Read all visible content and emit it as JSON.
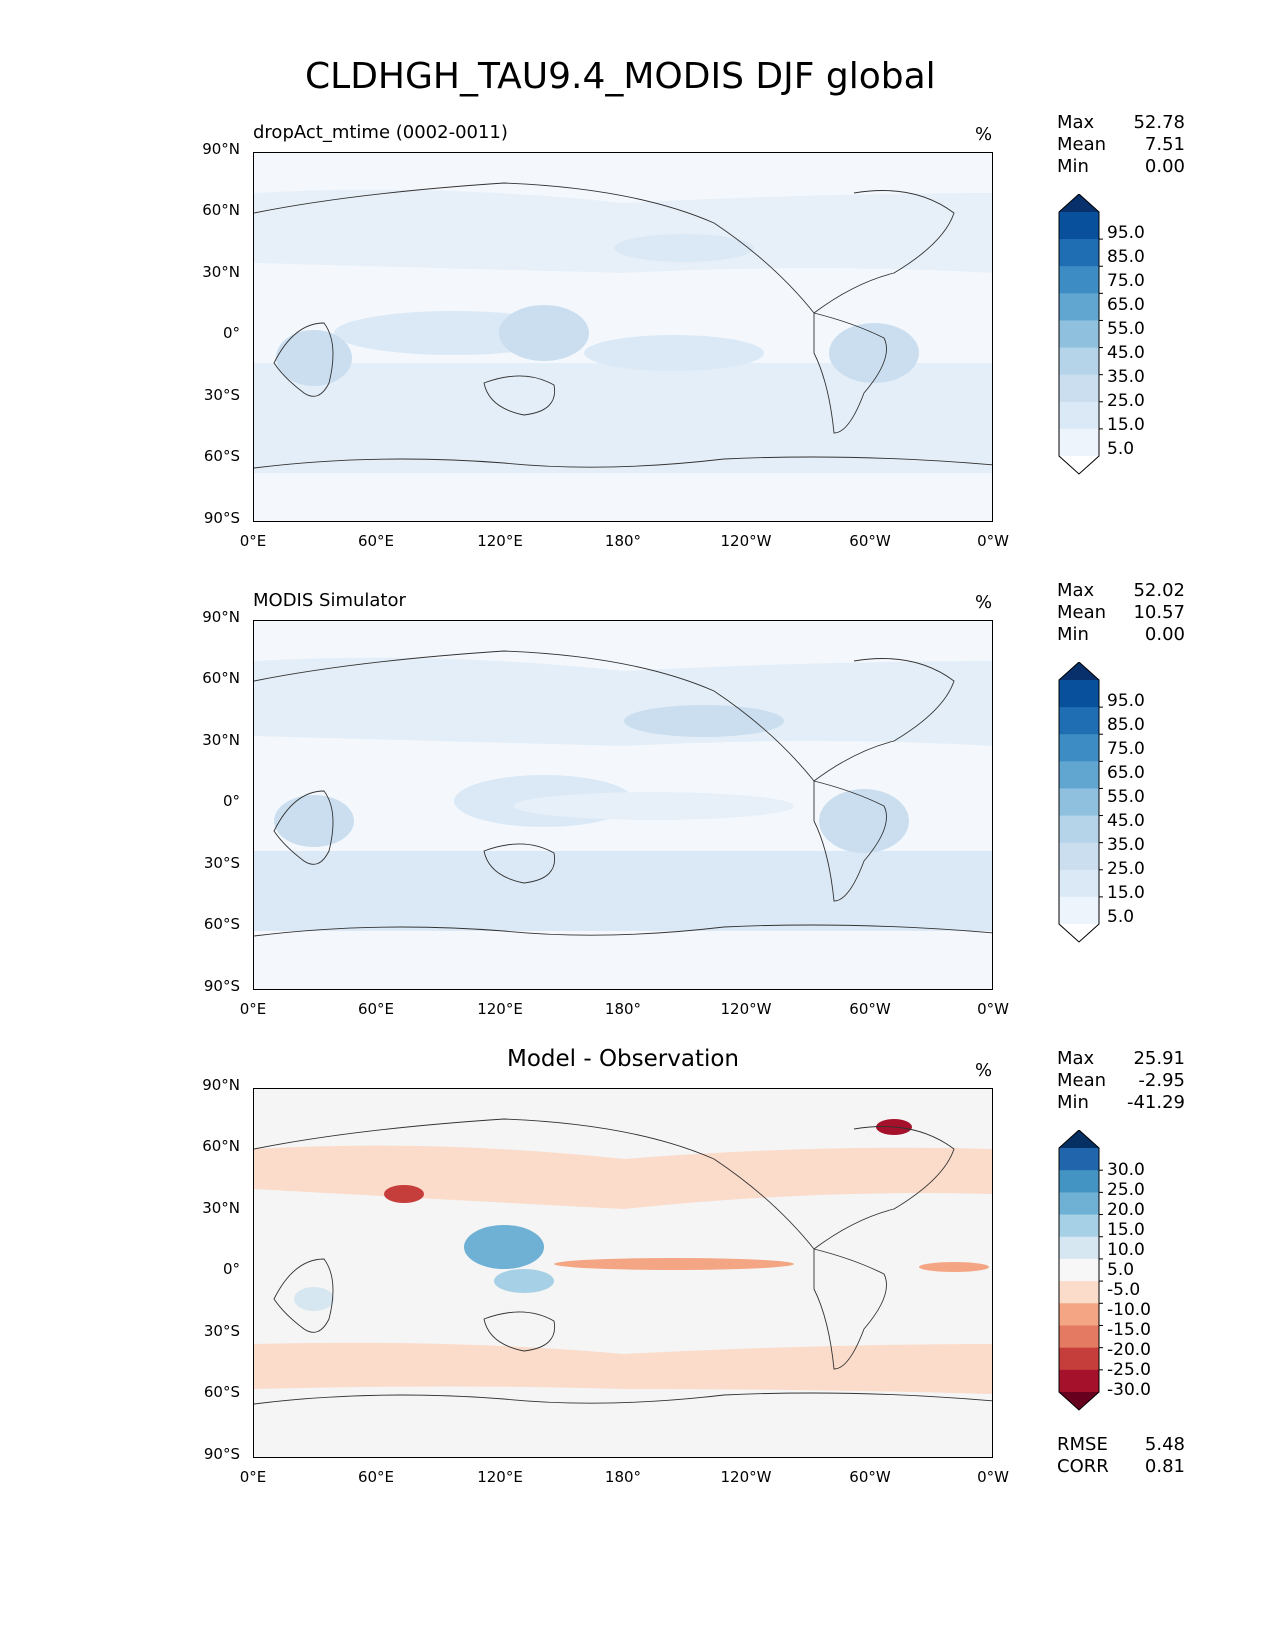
{
  "figure_title": "CLDHGH_TAU9.4_MODIS DJF global",
  "units": "%",
  "lat_ticks": [
    "90°N",
    "60°N",
    "30°N",
    "0°",
    "30°S",
    "60°S",
    "90°S"
  ],
  "lon_ticks": [
    "0°E",
    "60°E",
    "120°E",
    "180°",
    "120°W",
    "60°W",
    "0°W"
  ],
  "stat_labels": {
    "max": "Max",
    "mean": "Mean",
    "min": "Min",
    "rmse": "RMSE",
    "corr": "CORR"
  },
  "panels": [
    {
      "title": "dropAct_mtime (0002-0011)",
      "title_style": "left",
      "max": "52.78",
      "mean": "7.51",
      "min": "0.00",
      "colorbar_labels": [
        "95.0",
        "85.0",
        "75.0",
        "65.0",
        "55.0",
        "45.0",
        "35.0",
        "25.0",
        "15.0",
        "5.0"
      ],
      "colorbar_colors": [
        "#08306b",
        "#08509b",
        "#1f6eb3",
        "#3d8dc4",
        "#61a6d1",
        "#8fc1de",
        "#b5d3e9",
        "#cadeef",
        "#dbe9f6",
        "#edf4fc",
        "#ffffff"
      ]
    },
    {
      "title": "MODIS Simulator",
      "title_style": "left",
      "max": "52.02",
      "mean": "10.57",
      "min": "0.00",
      "colorbar_labels": [
        "95.0",
        "85.0",
        "75.0",
        "65.0",
        "55.0",
        "45.0",
        "35.0",
        "25.0",
        "15.0",
        "5.0"
      ],
      "colorbar_colors": [
        "#08306b",
        "#08509b",
        "#1f6eb3",
        "#3d8dc4",
        "#61a6d1",
        "#8fc1de",
        "#b5d3e9",
        "#cadeef",
        "#dbe9f6",
        "#edf4fc",
        "#ffffff"
      ]
    },
    {
      "title": "Model - Observation",
      "title_style": "center",
      "max": "25.91",
      "mean": "-2.95",
      "min": "-41.29",
      "colorbar_labels": [
        "30.0",
        "25.0",
        "20.0",
        "15.0",
        "10.0",
        "5.0",
        "-5.0",
        "-10.0",
        "-15.0",
        "-20.0",
        "-25.0",
        "-30.0"
      ],
      "colorbar_colors": [
        "#053061",
        "#2166ac",
        "#4393c3",
        "#6fb0d5",
        "#a6d0e5",
        "#d6e7f1",
        "#f7f7f7",
        "#fbdbca",
        "#f4a584",
        "#e47a62",
        "#c63e3c",
        "#a5112b",
        "#67001f"
      ],
      "rmse": "5.48",
      "corr": "0.81"
    }
  ],
  "chart_data": [
    {
      "type": "heatmap",
      "title": "dropAct_mtime (0002-0011)",
      "xlabel": "",
      "ylabel": "",
      "xlim": [
        0,
        360
      ],
      "ylim": [
        -90,
        90
      ],
      "units": "%",
      "max": 52.78,
      "mean": 7.51,
      "min": 0.0,
      "colorbar_levels": [
        5,
        15,
        25,
        35,
        45,
        55,
        65,
        75,
        85,
        95
      ]
    },
    {
      "type": "heatmap",
      "title": "MODIS Simulator",
      "xlabel": "",
      "ylabel": "",
      "xlim": [
        0,
        360
      ],
      "ylim": [
        -90,
        90
      ],
      "units": "%",
      "max": 52.02,
      "mean": 10.57,
      "min": 0.0,
      "colorbar_levels": [
        5,
        15,
        25,
        35,
        45,
        55,
        65,
        75,
        85,
        95
      ]
    },
    {
      "type": "heatmap",
      "title": "Model - Observation",
      "xlabel": "",
      "ylabel": "",
      "xlim": [
        0,
        360
      ],
      "ylim": [
        -90,
        90
      ],
      "units": "%",
      "max": 25.91,
      "mean": -2.95,
      "min": -41.29,
      "rmse": 5.48,
      "corr": 0.81,
      "colorbar_levels": [
        -30,
        -25,
        -20,
        -15,
        -10,
        -5,
        5,
        10,
        15,
        20,
        25,
        30
      ]
    }
  ]
}
